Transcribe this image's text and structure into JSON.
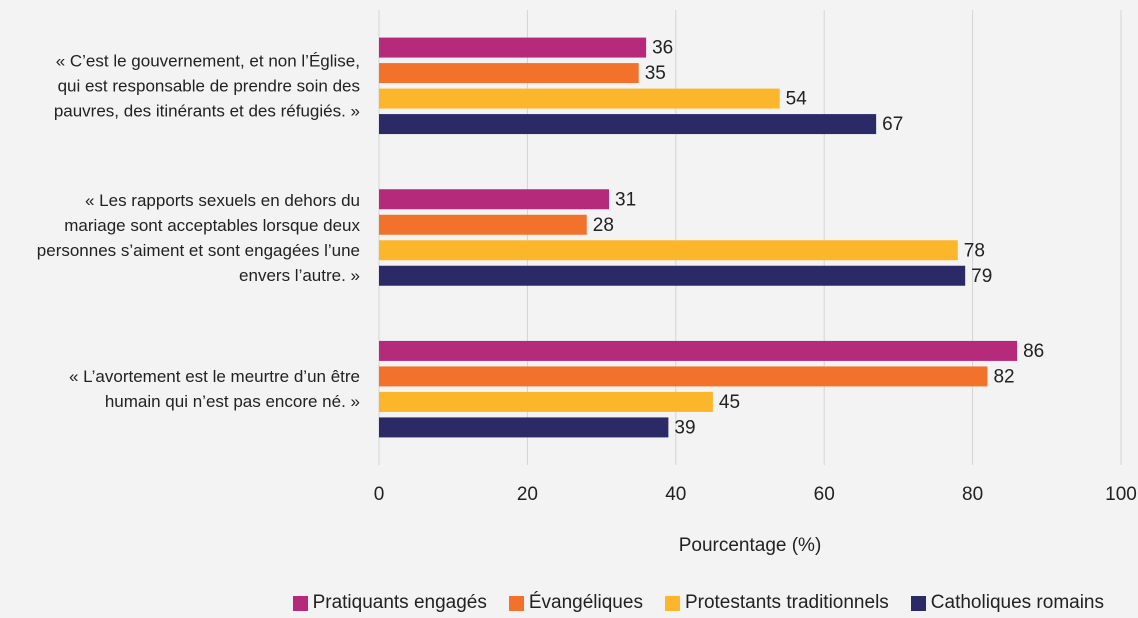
{
  "chart_data": {
    "type": "hbar",
    "categories": [
      "« C’est le gouvernement, et non l’Église, qui est responsable de prendre soin des pauvres, des itinérants et des réfugiés. »",
      "« Les rapports sexuels en dehors du mariage sont acceptables lorsque deux personnes s’aiment et sont engagées l’une envers l’autre. »",
      "« L’avortement est le meurtre d’un être humain qui n’est pas encore né. »"
    ],
    "series": [
      {
        "name": "Pratiquants engagés",
        "color": "#b52a7b",
        "values": [
          36,
          31,
          86
        ]
      },
      {
        "name": "Évangéliques",
        "color": "#f2722b",
        "values": [
          35,
          28,
          82
        ]
      },
      {
        "name": "Protestants traditionnels",
        "color": "#fbb62b",
        "values": [
          54,
          78,
          45
        ]
      },
      {
        "name": "Catholiques romains",
        "color": "#2c2a66",
        "values": [
          67,
          79,
          39
        ]
      }
    ],
    "xlabel": "Pourcentage (%)",
    "xlim": [
      0,
      100
    ],
    "xticks": [
      0,
      20,
      40,
      60,
      80,
      100
    ],
    "grid": true
  }
}
